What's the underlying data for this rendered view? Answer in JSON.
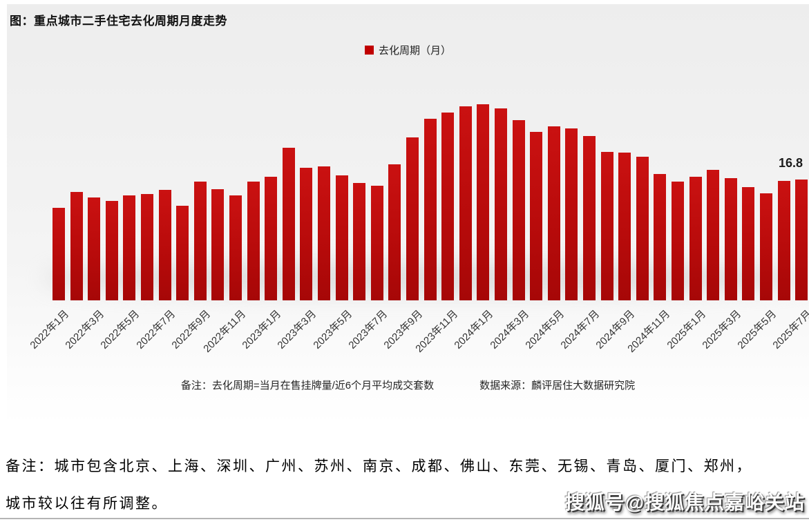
{
  "title": "图：重点城市二手住宅去化周期月度走势",
  "legend": {
    "label": "去化周期（月）",
    "color": "#c00000"
  },
  "annotation": {
    "last_value_label": "16.8"
  },
  "footnote": {
    "note": "备注：去化周期=当月在售挂牌量/近6个月平均成交套数",
    "source": "数据来源：麟评居住大数据研究院"
  },
  "bottom_note": {
    "line1": "备注：城市包含北京、上海、深圳、广州、苏州、南京、成都、佛山、东莞、无锡、青岛、厦门、郑州，",
    "line2": "城市较以往有所调整。"
  },
  "watermark": "搜狐号@搜狐焦点嘉峪关站",
  "colors": {
    "bar": "#c00000",
    "panel_background": "#f1f1f1"
  },
  "chart_data": {
    "type": "bar",
    "title": "图：重点城市二手住宅去化周期月度走势",
    "series_name": "去化周期（月）",
    "categories": [
      "2022年1月",
      "2022年2月",
      "2022年3月",
      "2022年4月",
      "2022年5月",
      "2022年6月",
      "2022年7月",
      "2022年8月",
      "2022年9月",
      "2022年10月",
      "2022年11月",
      "2022年12月",
      "2023年1月",
      "2023年2月",
      "2023年3月",
      "2023年4月",
      "2023年5月",
      "2023年6月",
      "2023年7月",
      "2023年8月",
      "2023年9月",
      "2023年10月",
      "2023年11月",
      "2023年12月",
      "2024年1月",
      "2024年2月",
      "2024年3月",
      "2024年4月",
      "2024年5月",
      "2024年6月",
      "2024年7月",
      "2024年8月",
      "2024年9月",
      "2024年10月",
      "2024年11月",
      "2024年12月",
      "2025年1月",
      "2025年2月",
      "2025年3月",
      "2025年4月",
      "2025年5月",
      "2025年6月",
      "2025年7月"
    ],
    "values": [
      12.9,
      15.1,
      14.3,
      13.8,
      14.6,
      14.8,
      15.4,
      13.2,
      16.5,
      15.5,
      14.6,
      16.5,
      17.2,
      21.2,
      18.4,
      18.6,
      17.4,
      16.3,
      15.9,
      18.9,
      22.7,
      25.2,
      26.1,
      27.0,
      27.3,
      26.7,
      25.1,
      23.4,
      24.2,
      23.9,
      22.8,
      20.6,
      20.5,
      20.0,
      17.6,
      16.5,
      17.2,
      18.1,
      17.0,
      15.7,
      14.9,
      16.6,
      16.8
    ],
    "x_tick_labels": [
      "2022年1月",
      "2022年3月",
      "2022年5月",
      "2022年7月",
      "2022年9月",
      "2022年11月",
      "2023年1月",
      "2023年3月",
      "2023年5月",
      "2023年7月",
      "2023年9月",
      "2023年11月",
      "2024年1月",
      "2024年3月",
      "2024年5月",
      "2024年7月",
      "2024年9月",
      "2024年11月",
      "2025年1月",
      "2025年3月",
      "2025年5月",
      "2025年7月"
    ],
    "ylabel": "去化周期（月）",
    "xlabel": "",
    "ylim": [
      0,
      28.5
    ],
    "grid": false,
    "legend_position": "top-center",
    "bar_color": "#c00000",
    "data_label": {
      "text": "16.8",
      "category": "2025年7月"
    }
  }
}
